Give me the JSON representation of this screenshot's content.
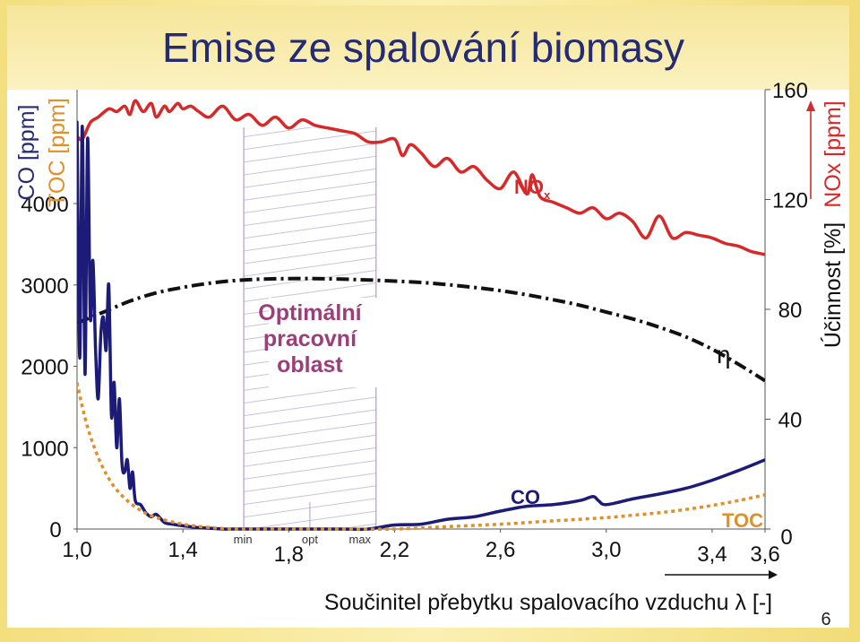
{
  "slide": {
    "title": "Emise ze spalování biomasy",
    "page_number": "6"
  },
  "chart_data": {
    "type": "line",
    "xlabel": "Součinitel přebytku spalovacího vzduchu λ [-]",
    "x_ticks": [
      "1,0",
      "1,4",
      "1,8",
      "2,2",
      "2,6",
      "3,0",
      "3,4",
      "3,6"
    ],
    "x_tick_values": [
      1.0,
      1.4,
      1.8,
      2.2,
      2.6,
      3.0,
      3.4,
      3.6
    ],
    "xlim": [
      1.0,
      3.6
    ],
    "left_axis": {
      "label_lines": [
        "CO [ppm]",
        "TOC [ppm]"
      ],
      "ticks": [
        "0",
        "1000",
        "2000",
        "3000",
        "4000"
      ],
      "tick_values": [
        0,
        1000,
        2000,
        3000,
        4000
      ],
      "range": [
        0,
        5400
      ]
    },
    "right_axis": {
      "label_lines": [
        "NOx [ppm]",
        "Účinnost [%]"
      ],
      "ticks": [
        "0",
        "40",
        "80",
        "120",
        "160"
      ],
      "tick_values": [
        0,
        40,
        80,
        120,
        160
      ],
      "range": [
        0,
        160
      ]
    },
    "optimal_region": {
      "label_lines": [
        "Optimální",
        "pracovní",
        "oblast"
      ],
      "min_label": "min",
      "opt_label": "opt",
      "max_label": "max",
      "min_x": 1.63,
      "opt_x": 1.88,
      "max_x": 2.13
    },
    "series": [
      {
        "name": "NOx",
        "axis": "right",
        "color": "#d62a2a",
        "label": "NO",
        "label_sub": "x",
        "x": [
          1.0,
          1.02,
          1.05,
          1.08,
          1.12,
          1.15,
          1.18,
          1.2,
          1.22,
          1.25,
          1.28,
          1.3,
          1.33,
          1.35,
          1.38,
          1.4,
          1.43,
          1.46,
          1.5,
          1.55,
          1.6,
          1.65,
          1.7,
          1.75,
          1.8,
          1.85,
          1.9,
          1.95,
          2.0,
          2.05,
          2.1,
          2.15,
          2.2,
          2.23,
          2.26,
          2.3,
          2.35,
          2.4,
          2.45,
          2.5,
          2.55,
          2.6,
          2.65,
          2.7,
          2.72,
          2.75,
          2.8,
          2.85,
          2.9,
          2.95,
          3.0,
          3.05,
          3.1,
          3.15,
          3.2,
          3.25,
          3.3,
          3.35,
          3.4,
          3.45,
          3.5,
          3.55,
          3.6
        ],
        "y": [
          143,
          142,
          148,
          150,
          153,
          152,
          154,
          151,
          156,
          152,
          155,
          150,
          154,
          152,
          155,
          153,
          154,
          152,
          150,
          154,
          149,
          151,
          147,
          150,
          146,
          149,
          147,
          146,
          145,
          144,
          141,
          141,
          142,
          136,
          140,
          137,
          132,
          135,
          130,
          132,
          127,
          124,
          130,
          122,
          129,
          121,
          119,
          117,
          115,
          117,
          113,
          115,
          112,
          106,
          114,
          106,
          108,
          107,
          106,
          104,
          103,
          101,
          100
        ]
      },
      {
        "name": "η",
        "axis": "right",
        "color": "#111111",
        "label": "η",
        "x": [
          1.0,
          1.1,
          1.2,
          1.3,
          1.4,
          1.5,
          1.6,
          1.7,
          1.8,
          1.9,
          2.0,
          2.1,
          2.2,
          2.3,
          2.4,
          2.5,
          2.6,
          2.7,
          2.8,
          2.9,
          3.0,
          3.1,
          3.2,
          3.3,
          3.4,
          3.5,
          3.6
        ],
        "y": [
          75,
          79,
          83,
          86,
          88,
          89.5,
          90.5,
          91,
          91.2,
          91.2,
          91,
          90.7,
          90.3,
          89.8,
          89,
          88,
          86.8,
          85.3,
          83.5,
          81.5,
          79,
          76.5,
          73.5,
          70,
          65.5,
          60,
          54
        ]
      },
      {
        "name": "CO",
        "axis": "left",
        "color": "#1c1c78",
        "label": "CO",
        "x": [
          1.0,
          1.01,
          1.02,
          1.03,
          1.04,
          1.05,
          1.06,
          1.07,
          1.08,
          1.09,
          1.1,
          1.11,
          1.12,
          1.13,
          1.14,
          1.15,
          1.16,
          1.17,
          1.18,
          1.19,
          1.2,
          1.21,
          1.22,
          1.24,
          1.26,
          1.28,
          1.3,
          1.33,
          1.36,
          1.4,
          1.45,
          1.5,
          1.55,
          1.6,
          1.7,
          1.8,
          1.9,
          2.0,
          2.1,
          2.2,
          2.3,
          2.4,
          2.5,
          2.6,
          2.7,
          2.8,
          2.9,
          2.95,
          2.97,
          3.0,
          3.1,
          3.2,
          3.3,
          3.4,
          3.5,
          3.6
        ],
        "y": [
          5000,
          2100,
          4950,
          1900,
          4800,
          2600,
          3300,
          2200,
          1600,
          2400,
          2600,
          2200,
          3000,
          1400,
          1800,
          1000,
          1600,
          800,
          700,
          850,
          500,
          700,
          350,
          300,
          200,
          150,
          180,
          80,
          60,
          40,
          20,
          10,
          0,
          0,
          0,
          0,
          0,
          0,
          0,
          50,
          60,
          120,
          150,
          220,
          280,
          300,
          350,
          400,
          350,
          300,
          370,
          430,
          500,
          600,
          720,
          850
        ]
      },
      {
        "name": "TOC",
        "axis": "left",
        "color": "#e0902a",
        "label": "TOC",
        "x": [
          1.0,
          1.02,
          1.04,
          1.06,
          1.08,
          1.1,
          1.12,
          1.15,
          1.2,
          1.25,
          1.3,
          1.4,
          1.5,
          1.6,
          1.8,
          2.0,
          2.2,
          2.4,
          2.6,
          2.8,
          3.0,
          3.1,
          3.2,
          3.3,
          3.4,
          3.5,
          3.6
        ],
        "y": [
          1800,
          1500,
          1250,
          1050,
          880,
          740,
          620,
          480,
          320,
          210,
          140,
          60,
          20,
          0,
          0,
          0,
          0,
          30,
          60,
          100,
          140,
          170,
          200,
          240,
          290,
          350,
          420
        ]
      }
    ]
  }
}
